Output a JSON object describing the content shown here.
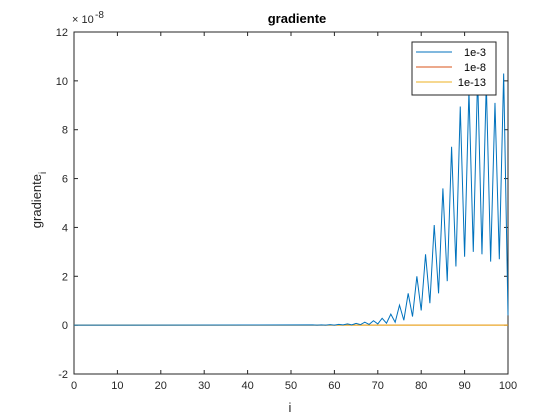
{
  "chart_data": {
    "type": "line",
    "title": "gradiente",
    "xlabel": "i",
    "ylabel_main": "gradiente",
    "ylabel_sub": "i",
    "y_exponent_base": "× 10",
    "y_exponent_power": "-8",
    "xlim": [
      0,
      100
    ],
    "ylim": [
      -2,
      12
    ],
    "xticks": [
      "0",
      "10",
      "20",
      "30",
      "40",
      "50",
      "60",
      "70",
      "80",
      "90",
      "100"
    ],
    "yticks": [
      "-2",
      "0",
      "2",
      "4",
      "6",
      "8",
      "10",
      "12"
    ],
    "grid": false,
    "legend_position": "top-right",
    "series": [
      {
        "name": "1e-3",
        "color": "#0072BD",
        "x": [
          55,
          56,
          57,
          58,
          59,
          60,
          61,
          62,
          63,
          64,
          65,
          66,
          67,
          68,
          69,
          70,
          71,
          72,
          73,
          74,
          75,
          76,
          77,
          78,
          79,
          80,
          81,
          82,
          83,
          84,
          85,
          86,
          87,
          88,
          89,
          90,
          91,
          92,
          93,
          94,
          95,
          96,
          97,
          98,
          99,
          100
        ],
        "y": [
          0.01,
          0,
          0.01,
          0,
          0.02,
          0,
          0.03,
          0.01,
          0.05,
          0.01,
          0.07,
          0.02,
          0.12,
          0.03,
          0.18,
          0.05,
          0.28,
          0.08,
          0.45,
          0.12,
          0.82,
          0.2,
          1.3,
          0.35,
          2.0,
          0.6,
          2.9,
          0.9,
          4.1,
          1.3,
          5.6,
          1.8,
          7.3,
          2.4,
          8.95,
          2.8,
          9.6,
          3.0,
          10.2,
          2.9,
          9.9,
          2.6,
          9.1,
          2.7,
          10.3,
          0.4
        ]
      },
      {
        "name": "1e-8",
        "color": "#D95319",
        "x": [
          0,
          100
        ],
        "y": [
          0,
          0
        ]
      },
      {
        "name": "1e-13",
        "color": "#EDB120",
        "x": [
          0,
          100
        ],
        "y": [
          0,
          0
        ]
      }
    ]
  }
}
